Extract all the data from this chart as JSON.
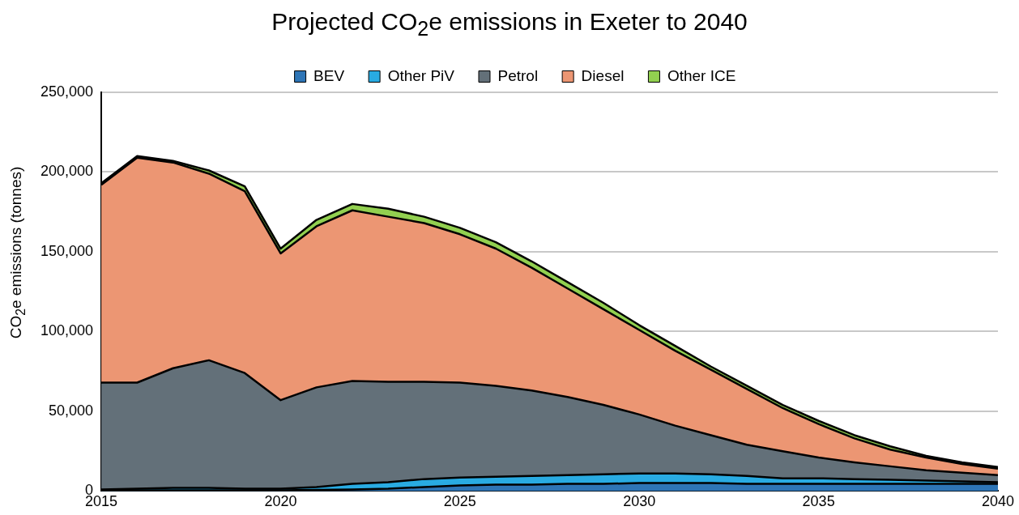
{
  "chart_data": {
    "type": "area",
    "title": "Projected CO$_{2}$e emissions in Exeter to 2040",
    "ylabel": "CO$_{2}$e emissions (tonnes)",
    "stacked": true,
    "legend": "top",
    "grid": "y",
    "x": [
      2015,
      2016,
      2017,
      2018,
      2019,
      2020,
      2021,
      2022,
      2023,
      2024,
      2025,
      2026,
      2027,
      2028,
      2029,
      2030,
      2031,
      2032,
      2033,
      2034,
      2035,
      2036,
      2037,
      2038,
      2039,
      2040
    ],
    "xlim": [
      2015,
      2040
    ],
    "xticks": [
      2015,
      2020,
      2025,
      2030,
      2035,
      2040
    ],
    "ylim": [
      0,
      250000
    ],
    "yticks": [
      0,
      {
        "value": 50000,
        "label": "50,000"
      },
      {
        "value": 100000,
        "label": "100,000"
      },
      {
        "value": 150000,
        "label": "150,000"
      },
      {
        "value": 200000,
        "label": "200,000"
      },
      {
        "value": 250000,
        "label": "250,000"
      }
    ],
    "series": [
      {
        "name": "BEV",
        "color": "#2e75b6",
        "values": [
          500,
          500,
          500,
          500,
          500,
          500,
          700,
          1000,
          1500,
          2500,
          3500,
          4000,
          4000,
          4500,
          4500,
          5000,
          5000,
          5000,
          4500,
          4500,
          4500,
          4500,
          4500,
          4500,
          4500,
          4500
        ]
      },
      {
        "name": "Other PiV",
        "color": "#29abe2",
        "values": [
          500,
          1000,
          1500,
          1500,
          1000,
          1000,
          1800,
          3500,
          4000,
          5000,
          5000,
          5000,
          5500,
          5500,
          6000,
          6000,
          6000,
          5500,
          5000,
          3500,
          3500,
          3000,
          2500,
          2000,
          1500,
          1000
        ]
      },
      {
        "name": "Petrol",
        "color": "#637079",
        "values": [
          67000,
          66500,
          75000,
          80000,
          72500,
          55500,
          62500,
          64500,
          63000,
          61000,
          59500,
          57000,
          53500,
          49000,
          43500,
          37000,
          30000,
          24500,
          19500,
          17000,
          13000,
          10500,
          8500,
          6500,
          5500,
          4500
        ]
      },
      {
        "name": "Diesel",
        "color": "#ec9673",
        "values": [
          124000,
          141000,
          129000,
          117000,
          114000,
          92000,
          101000,
          107000,
          103500,
          99500,
          93000,
          86000,
          77000,
          68000,
          60000,
          53000,
          47000,
          41000,
          35000,
          27000,
          21000,
          15000,
          10500,
          8000,
          5500,
          4000
        ]
      },
      {
        "name": "Other ICE",
        "color": "#92d050",
        "values": [
          1000,
          1000,
          1000,
          2000,
          3000,
          3000,
          4000,
          4000,
          5000,
          4000,
          4000,
          4000,
          4000,
          4000,
          4000,
          3000,
          3000,
          2000,
          2000,
          2000,
          2000,
          2000,
          2000,
          1000,
          1000,
          1000
        ]
      }
    ]
  }
}
